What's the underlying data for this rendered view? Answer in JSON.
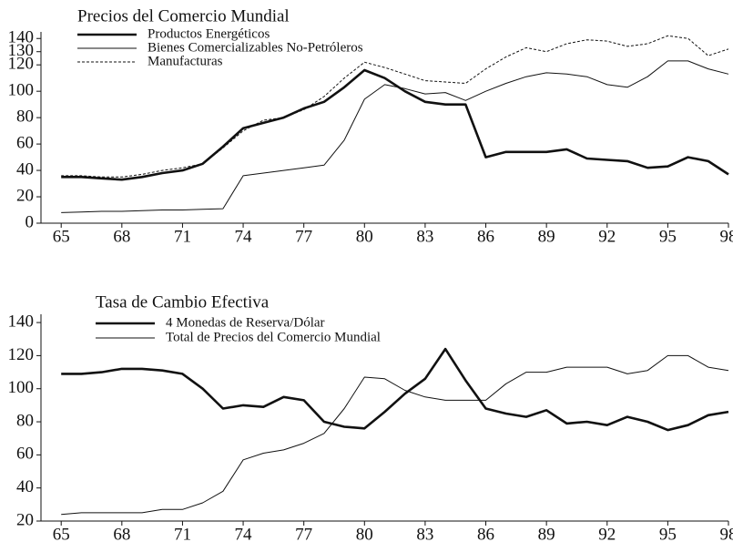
{
  "chart_data": [
    {
      "type": "line",
      "title": "Precios del Comercio Mundial",
      "x": [
        65,
        66,
        67,
        68,
        69,
        70,
        71,
        72,
        73,
        74,
        75,
        76,
        77,
        78,
        79,
        80,
        81,
        82,
        83,
        84,
        85,
        86,
        87,
        88,
        89,
        90,
        91,
        92,
        93,
        94,
        95,
        96,
        97,
        98
      ],
      "xlim": [
        64,
        98
      ],
      "xticks": [
        65,
        68,
        71,
        74,
        77,
        80,
        83,
        86,
        89,
        92,
        95,
        98
      ],
      "ylim": [
        0,
        145
      ],
      "yticks": [
        0,
        20,
        40,
        60,
        80,
        100,
        120,
        130,
        140
      ],
      "series": [
        {
          "name": "Productos Energéticos",
          "color": "#111111",
          "width": 2.6,
          "dash": "none",
          "values": [
            35,
            35,
            34,
            33,
            35,
            38,
            40,
            45,
            58,
            72,
            76,
            80,
            87,
            92,
            103,
            116,
            110,
            100,
            92,
            90,
            90,
            50,
            54,
            54,
            54,
            56,
            49,
            48,
            47,
            42,
            43,
            50,
            47,
            37
          ]
        },
        {
          "name": "Bienes Comercializables No-Petróleros",
          "color": "#111111",
          "width": 1,
          "dash": "none",
          "values": [
            8,
            8.5,
            9,
            9,
            9.5,
            10,
            10,
            10.5,
            11,
            36,
            38,
            40,
            42,
            44,
            63,
            94,
            105,
            102,
            98,
            99,
            93,
            100,
            106,
            111,
            114,
            113,
            111,
            105,
            103,
            111,
            123,
            123,
            117,
            113
          ]
        },
        {
          "name": "Manufacturas",
          "color": "#111111",
          "width": 1,
          "dash": "3,2",
          "values": [
            36,
            36,
            35,
            35,
            37,
            40,
            42,
            45,
            57,
            70,
            78,
            80,
            86,
            96,
            110,
            122,
            118,
            113,
            108,
            107,
            106,
            117,
            126,
            133,
            130,
            136,
            139,
            138,
            134,
            136,
            142,
            140,
            127,
            132
          ]
        }
      ]
    },
    {
      "type": "line",
      "title": "Tasa de Cambio Efectiva",
      "x": [
        65,
        66,
        67,
        68,
        69,
        70,
        71,
        72,
        73,
        74,
        75,
        76,
        77,
        78,
        79,
        80,
        81,
        82,
        83,
        84,
        85,
        86,
        87,
        88,
        89,
        90,
        91,
        92,
        93,
        94,
        95,
        96,
        97,
        98
      ],
      "xlim": [
        64,
        98
      ],
      "xticks": [
        65,
        68,
        71,
        74,
        77,
        80,
        83,
        86,
        89,
        92,
        95,
        98
      ],
      "ylim": [
        20,
        145
      ],
      "yticks": [
        20,
        40,
        60,
        80,
        100,
        120,
        140
      ],
      "series": [
        {
          "name": "4 Monedas de Reserva/Dólar",
          "color": "#111111",
          "width": 2.6,
          "dash": "none",
          "values": [
            109,
            109,
            110,
            112,
            112,
            111,
            109,
            100,
            88,
            90,
            89,
            95,
            93,
            80,
            77,
            76,
            86,
            97,
            106,
            124,
            105,
            88,
            85,
            83,
            87,
            79,
            80,
            78,
            83,
            80,
            75,
            78,
            84,
            86
          ]
        },
        {
          "name": "Total de Precios del Comercio Mundial",
          "color": "#111111",
          "width": 1,
          "dash": "none",
          "values": [
            24,
            25,
            25,
            25,
            25,
            27,
            27,
            31,
            38,
            57,
            61,
            63,
            67,
            73,
            88,
            107,
            106,
            99,
            95,
            93,
            93,
            93,
            103,
            110,
            110,
            113,
            113,
            113,
            109,
            111,
            120,
            120,
            113,
            111
          ]
        }
      ]
    }
  ]
}
